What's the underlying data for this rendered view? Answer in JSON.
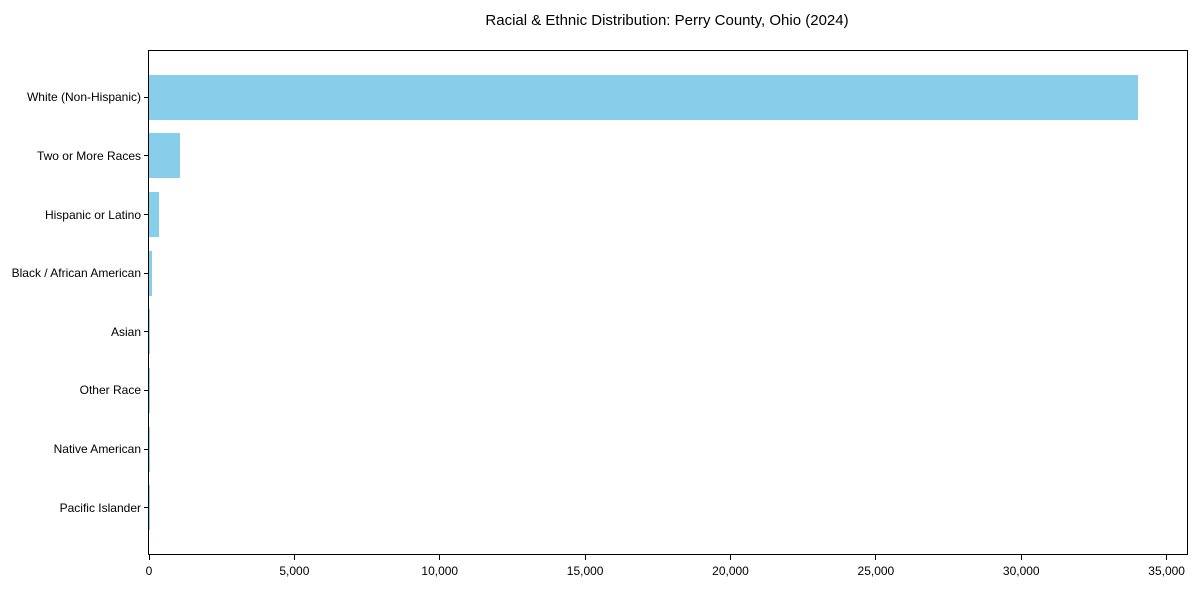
{
  "chart_data": {
    "type": "bar",
    "orientation": "horizontal",
    "title": "Racial & Ethnic Distribution: Perry County, Ohio (2024)",
    "categories": [
      "White (Non-Hispanic)",
      "Two or More Races",
      "Hispanic or Latino",
      "Black / African American",
      "Asian",
      "Other Race",
      "Native American",
      "Pacific Islander"
    ],
    "values": [
      34000,
      1050,
      350,
      120,
      50,
      40,
      20,
      10
    ],
    "xlabel": "",
    "ylabel": "",
    "xlim": [
      0,
      35700
    ],
    "xticks": [
      0,
      5000,
      10000,
      15000,
      20000,
      25000,
      30000,
      35000
    ],
    "xtick_labels": [
      "0",
      "5,000",
      "10,000",
      "15,000",
      "20,000",
      "25,000",
      "30,000",
      "35,000"
    ],
    "bar_color": "#87CEEB",
    "axis_color": "#000000",
    "text_color": "#000000",
    "background_color": "#ffffff",
    "grid": false,
    "legend": null
  }
}
